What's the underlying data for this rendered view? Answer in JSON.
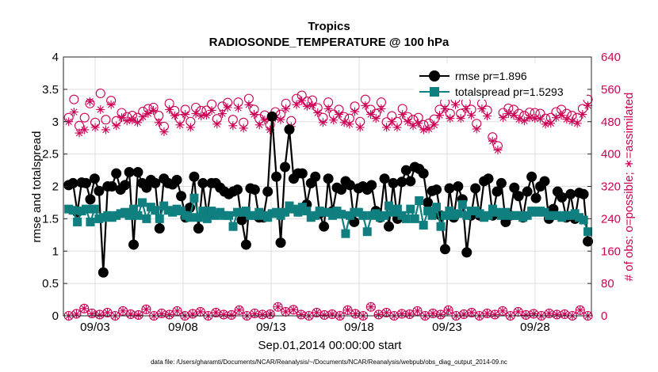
{
  "chart_data": {
    "type": "line",
    "title": "Tropics",
    "subtitle": "RADIOSONDE_TEMPERATURE @ 100 hPa",
    "xlabel": "Sep.01,2014 00:00:00 start",
    "ylabel_left": "rmse and totalspread",
    "ylabel_right": "# of obs: o=possible; ∗=assimilated",
    "footnote": "data file: /Users/gharamti/Documents/NCAR/Reanalysis/~/Documents/NCAR/Reanalysis/webpub/obs_diag_output_2014-09.nc",
    "xlim": [
      1,
      31
    ],
    "ylim_left": [
      0,
      4
    ],
    "ylim_right": [
      0,
      640
    ],
    "yticks_left": [
      "0",
      "0.5",
      "1",
      "1.5",
      "2",
      "2.5",
      "3",
      "3.5",
      "4"
    ],
    "yticks_right": [
      "0",
      "80",
      "160",
      "240",
      "320",
      "400",
      "480",
      "560",
      "640"
    ],
    "xticks": [
      {
        "day": 3,
        "label": "09/03"
      },
      {
        "day": 8,
        "label": "09/08"
      },
      {
        "day": 13,
        "label": "09/13"
      },
      {
        "day": 18,
        "label": "09/18"
      },
      {
        "day": 23,
        "label": "09/23"
      },
      {
        "day": 28,
        "label": "09/28"
      }
    ],
    "legend": {
      "position": "top-right",
      "rmse_label": "rmse pr=1.896",
      "spread_label": "totalspread pr=1.5293"
    },
    "series": [
      {
        "name": "rmse",
        "color": "#000000",
        "marker": "circle",
        "values": [
          2.02,
          2.05,
          1.6,
          2.06,
          2.05,
          1.8,
          2.12,
          1.93,
          0.67,
          2,
          2,
          2.2,
          1.95,
          2.02,
          2.22,
          1.1,
          2.22,
          2.05,
          1.98,
          2.1,
          2.05,
          1.35,
          2.12,
          2.05,
          2.03,
          2.1,
          1.85,
          1.52,
          1.67,
          2.15,
          1.35,
          2.05,
          1.55,
          2.05,
          2.05,
          1.98,
          1.92,
          1.88,
          1.92,
          1.95,
          1.48,
          1.1,
          1.97,
          1.95,
          1.52,
          1.52,
          1.92,
          3.08,
          2.15,
          1.13,
          2.3,
          2.88,
          2.12,
          2.2,
          2.2,
          1.72,
          2.05,
          2.15,
          1.58,
          1.38,
          2.12,
          1.62,
          1.98,
          1.95,
          2.08,
          2.02,
          1.45,
          1.97,
          2,
          1.95,
          2.02,
          1.62,
          1.52,
          2.12,
          1.38,
          2.05,
          1.5,
          2.07,
          2.25,
          2.08,
          2.3,
          2.27,
          2.2,
          1.75,
          1.93,
          1.95,
          1.55,
          1.03,
          1.97,
          1.52,
          2,
          1.8,
          0.98,
          1.55,
          1.97,
          1.55,
          2.08,
          2.12,
          1.55,
          1.92,
          2.05,
          1.45,
          1.55,
          1.98,
          1.85,
          1.52,
          1.92,
          2.15,
          1.82,
          2,
          2.08,
          1.5,
          1.65,
          1.92,
          1.83,
          1.52,
          1.88,
          1.5,
          1.9,
          1.88,
          1.15
        ]
      },
      {
        "name": "totalspread",
        "color": "#0f7f7f",
        "marker": "square",
        "values": [
          1.65,
          1.63,
          1.45,
          1.62,
          1.65,
          1.45,
          1.65,
          1.5,
          1.52,
          1.55,
          1.52,
          1.55,
          1.58,
          1.6,
          1.55,
          1.65,
          1.55,
          1.75,
          1.5,
          1.68,
          1.63,
          1.5,
          1.7,
          1.63,
          1.6,
          1.65,
          1.62,
          1.55,
          1.52,
          1.82,
          1.52,
          1.62,
          1.5,
          1.62,
          1.55,
          1.6,
          1.55,
          1.55,
          1.38,
          1.6,
          1.6,
          1.62,
          1.55,
          1.55,
          1.6,
          1.55,
          1.52,
          1.58,
          1.6,
          1.55,
          1.6,
          1.7,
          1.65,
          1.6,
          1.68,
          1.62,
          1.52,
          1.55,
          1.62,
          1.6,
          1.6,
          1.55,
          1.62,
          1.57,
          1.27,
          1.55,
          1.6,
          1.6,
          1.55,
          1.3,
          1.55,
          1.58,
          1.52,
          1.55,
          1.7,
          1.6,
          1.65,
          1.55,
          1.5,
          1.65,
          1.5,
          1.78,
          1.4,
          1.62,
          1.55,
          1.68,
          1.38,
          1.55,
          1.62,
          1.55,
          1.58,
          1.72,
          1.55,
          1.62,
          1.62,
          1.58,
          1.52,
          1.55,
          1.65,
          1.6,
          1.55,
          1.6,
          1.55,
          1.55,
          1.55,
          1.52,
          1.55,
          1.62,
          1.6,
          1.62,
          1.6,
          1.55,
          1.55,
          1.55,
          1.52,
          1.55,
          1.55,
          1.58,
          1.52,
          1.48,
          1.3
        ]
      },
      {
        "name": "possible",
        "color": "#cc0055",
        "marker": "circle-open",
        "axis": "right",
        "values": [
          490,
          535,
          470,
          490,
          525,
          478,
          550,
          485,
          532,
          482,
          502,
          492,
          495,
          490,
          505,
          512,
          515,
          495,
          468,
          525,
          507,
          487,
          510,
          480,
          515,
          507,
          508,
          523,
          487,
          518,
          527,
          485,
          528,
          478,
          537,
          510,
          487,
          496,
          472,
          504,
          498,
          525,
          482,
          537,
          545,
          530,
          533,
          514,
          490,
          528,
          498,
          510,
          492,
          488,
          518,
          480,
          535,
          510,
          500,
          528,
          479,
          494,
          480,
          512,
          492,
          485,
          490,
          472,
          476,
          486,
          510,
          528,
          500,
          536,
          500,
          528,
          510,
          475,
          525,
          508,
          442,
          420,
          502,
          513,
          510,
          500,
          495,
          503,
          502,
          500,
          488,
          490,
          504,
          510,
          500,
          495,
          490,
          512,
          535
        ]
      },
      {
        "name": "assimilated",
        "color": "#cc0055",
        "marker": "asterisk",
        "axis": "right",
        "values": [
          480,
          504,
          452,
          460,
          530,
          466,
          510,
          460,
          522,
          470,
          490,
          482,
          484,
          478,
          492,
          500,
          508,
          478,
          455,
          510,
          495,
          472,
          498,
          466,
          500,
          494,
          496,
          508,
          474,
          500,
          515,
          470,
          514,
          464,
          522,
          498,
          472,
          484,
          460,
          490,
          485,
          512,
          468,
          522,
          532,
          518,
          520,
          502,
          478,
          512,
          484,
          498,
          478,
          474,
          505,
          466,
          520,
          498,
          488,
          512,
          466,
          480,
          466,
          498,
          480,
          470,
          476,
          460,
          462,
          472,
          496,
          512,
          488,
          522,
          488,
          512,
          496,
          462,
          512,
          494,
          432,
          410,
          490,
          500,
          496,
          486,
          482,
          490,
          488,
          487,
          474,
          476,
          490,
          496,
          486,
          481,
          476,
          498,
          520
        ]
      },
      {
        "name": "possible-low",
        "color": "#cc0055",
        "marker": "circle-open",
        "axis": "right",
        "values": [
          0,
          5,
          18,
          6,
          3,
          8,
          0,
          12,
          4,
          2,
          16,
          0,
          6,
          3,
          12,
          0,
          5,
          10,
          0,
          8,
          3,
          2,
          14,
          0,
          6,
          3,
          4,
          22,
          10,
          15,
          3,
          0,
          8,
          2,
          4,
          0,
          14,
          5,
          0,
          22,
          3,
          8,
          0,
          5,
          4,
          12,
          0,
          6,
          3,
          14,
          0,
          4,
          8,
          0,
          6,
          3,
          12,
          0,
          10,
          2,
          5,
          0,
          6,
          3,
          4,
          0,
          14,
          0
        ]
      },
      {
        "name": "assimilated-low",
        "color": "#cc0055",
        "marker": "asterisk",
        "axis": "right",
        "values": [
          0,
          4,
          18,
          5,
          2,
          8,
          0,
          12,
          4,
          2,
          16,
          0,
          5,
          3,
          12,
          0,
          4,
          10,
          0,
          8,
          3,
          2,
          14,
          0,
          5,
          3,
          4,
          22,
          10,
          15,
          3,
          0,
          8,
          2,
          4,
          0,
          14,
          5,
          0,
          22,
          3,
          8,
          0,
          5,
          4,
          12,
          0,
          6,
          3,
          14,
          0,
          4,
          8,
          0,
          6,
          3,
          12,
          0,
          10,
          2,
          5,
          0,
          6,
          3,
          4,
          0,
          14,
          0
        ]
      }
    ]
  }
}
